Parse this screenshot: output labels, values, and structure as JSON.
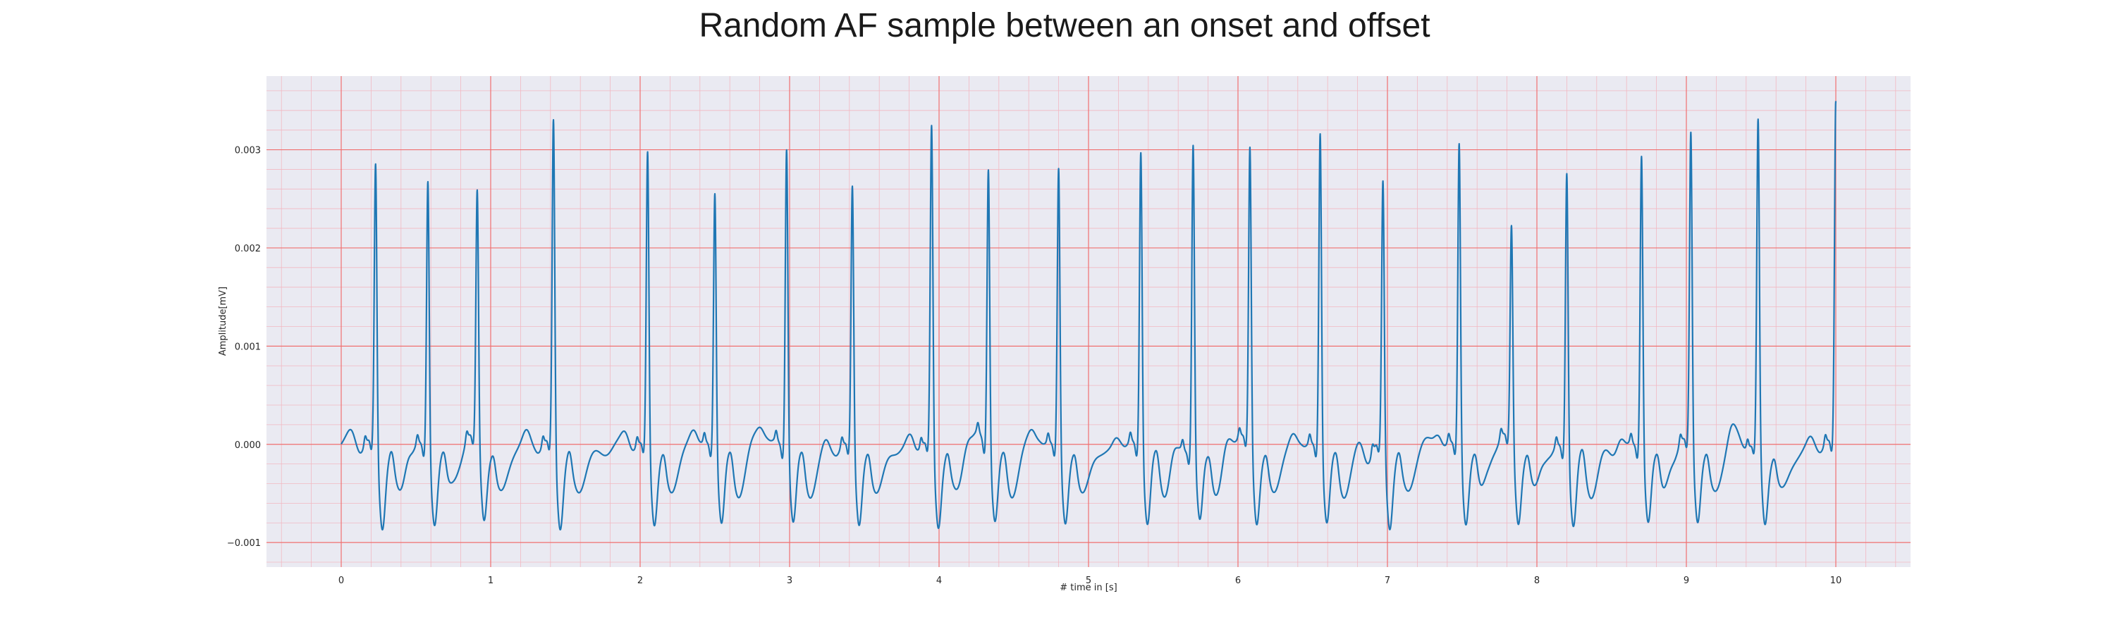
{
  "chart_data": {
    "type": "line",
    "title": "Random AF sample between an onset and offset",
    "xlabel": "# time in [s]",
    "ylabel": "Amplitude[mV]",
    "xlim": [
      -0.5,
      10.5
    ],
    "ylim": [
      -0.00125,
      0.00375
    ],
    "x_ticks": [
      0,
      1,
      2,
      3,
      4,
      5,
      6,
      7,
      8,
      9,
      10
    ],
    "x_tick_labels": [
      "0",
      "1",
      "2",
      "3",
      "4",
      "5",
      "6",
      "7",
      "8",
      "9",
      "10"
    ],
    "y_ticks": [
      -0.001,
      0.0,
      0.001,
      0.002,
      0.003
    ],
    "y_tick_labels": [
      "−0.001",
      "0.000",
      "0.001",
      "0.002",
      "0.003"
    ],
    "grid": true,
    "minor_grid": true,
    "colors": {
      "plot_background": "#eaeaf2",
      "major_grid": "#f07070",
      "minor_grid": "#f2b8c2",
      "line": "#1f77b4"
    },
    "series": [
      {
        "x_start": 0.0,
        "x_end": 10.0,
        "r_peaks": [
          {
            "t": 0.23,
            "a": 0.0029
          },
          {
            "t": 0.58,
            "a": 0.00278
          },
          {
            "t": 0.91,
            "a": 0.00255
          },
          {
            "t": 1.42,
            "a": 0.00335
          },
          {
            "t": 2.05,
            "a": 0.00303
          },
          {
            "t": 2.5,
            "a": 0.00265
          },
          {
            "t": 2.98,
            "a": 0.00312
          },
          {
            "t": 3.42,
            "a": 0.0027
          },
          {
            "t": 3.95,
            "a": 0.00328
          },
          {
            "t": 4.33,
            "a": 0.00289
          },
          {
            "t": 4.8,
            "a": 0.00289
          },
          {
            "t": 5.35,
            "a": 0.00308
          },
          {
            "t": 5.7,
            "a": 0.00316
          },
          {
            "t": 6.08,
            "a": 0.00303
          },
          {
            "t": 6.55,
            "a": 0.00326
          },
          {
            "t": 6.97,
            "a": 0.00272
          },
          {
            "t": 7.48,
            "a": 0.00314
          },
          {
            "t": 7.83,
            "a": 0.0022
          },
          {
            "t": 8.2,
            "a": 0.00289
          },
          {
            "t": 8.7,
            "a": 0.00303
          },
          {
            "t": 9.03,
            "a": 0.00317
          },
          {
            "t": 9.48,
            "a": 0.00332
          },
          {
            "t": 10.0,
            "a": 0.00356
          }
        ],
        "post_beat_minimum": -0.0009,
        "baseline": 0.0
      }
    ]
  }
}
